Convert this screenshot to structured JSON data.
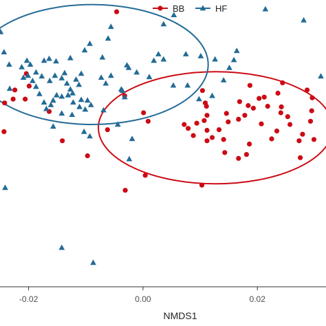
{
  "chart_data": {
    "type": "scatter",
    "title": "",
    "xlabel": "NMDS1",
    "ylabel": "",
    "xlim": [
      -0.025,
      0.032
    ],
    "ylim": [
      -0.0255,
      0.0185
    ],
    "xticks": [
      -0.02,
      0.0,
      0.02
    ],
    "xtick_labels": [
      "-0.02",
      "0.00",
      "0.02"
    ],
    "grid": false,
    "legend_position": "top",
    "series": [
      {
        "name": "BB",
        "color": "#cc0a14",
        "marker": "circle",
        "points": [
          [
            -0.0046,
            0.0167
          ],
          [
            -0.0204,
            0.0072
          ],
          [
            -0.0199,
            0.0053
          ],
          [
            -0.0224,
            0.0047
          ],
          [
            -0.0227,
            0.0033
          ],
          [
            -0.0206,
            0.0033
          ],
          [
            -0.0242,
            0.0027
          ],
          [
            -0.0164,
            0.0014
          ],
          [
            -0.0243,
            -0.0017
          ],
          [
            -0.0062,
            -0.0014
          ],
          [
            -0.0141,
            -0.0031
          ],
          [
            -0.0032,
            0.0038
          ],
          [
            0.0001,
            0.0012
          ],
          [
            0.0009,
            -0.0001
          ],
          [
            0.0072,
            -0.0006
          ],
          [
            0.0109,
            0.0027
          ],
          [
            0.0111,
            0.0022
          ],
          [
            0.0112,
            0.0008
          ],
          [
            0.0107,
            0.0
          ],
          [
            0.0094,
            -0.0004
          ],
          [
            0.0079,
            -0.0012
          ],
          [
            0.0088,
            -0.0023
          ],
          [
            0.0112,
            -0.0015
          ],
          [
            0.0133,
            -0.0014
          ],
          [
            0.0141,
            -0.0029
          ],
          [
            0.0121,
            -0.0026
          ],
          [
            0.0112,
            -0.0031
          ],
          [
            0.0143,
            -0.0049
          ],
          [
            0.0167,
            -0.0058
          ],
          [
            0.0181,
            -0.0052
          ],
          [
            0.0186,
            -0.0036
          ],
          [
            0.0149,
            -0.0002
          ],
          [
            0.0146,
            0.0011
          ],
          [
            0.0169,
            0.0029
          ],
          [
            0.0212,
            0.0036
          ],
          [
            0.0203,
            0.0034
          ],
          [
            0.0244,
            0.0058
          ],
          [
            0.0236,
            0.0042
          ],
          [
            0.0242,
            0.0021
          ],
          [
            0.0241,
            0.0012
          ],
          [
            0.0218,
            0.0022
          ],
          [
            0.0193,
            0.0019
          ],
          [
            0.0178,
            0.0008
          ],
          [
            0.0167,
            0.0002
          ],
          [
            0.0207,
            -0.0005
          ],
          [
            0.0253,
            0.0006
          ],
          [
            0.0257,
            -0.0006
          ],
          [
            0.0234,
            -0.0016
          ],
          [
            0.0225,
            -0.0028
          ],
          [
            0.0187,
            0.0054
          ],
          [
            0.0004,
            -0.0084
          ],
          [
            -0.0031,
            -0.0107
          ],
          [
            0.0103,
            -0.0099
          ],
          [
            0.0296,
            0.0035
          ],
          [
            0.0295,
            0.0015
          ],
          [
            0.0287,
            0.0047
          ],
          [
            0.0293,
            -0.0001
          ],
          [
            0.0279,
            -0.0021
          ],
          [
            0.0273,
            -0.0031
          ],
          [
            0.0299,
            -0.0029
          ],
          [
            0.0275,
            -0.0057
          ],
          [
            0.0104,
            0.0046
          ],
          [
            0.0184,
            0.0023
          ],
          [
            -0.0097,
            -0.0054
          ]
        ]
      },
      {
        "name": "HF",
        "color": "#246b96",
        "marker": "triangle",
        "points": [
          [
            -0.0249,
            0.0136
          ],
          [
            -0.0234,
            0.0086
          ],
          [
            -0.0212,
            0.0082
          ],
          [
            -0.0197,
            0.0086
          ],
          [
            -0.0173,
            0.0092
          ],
          [
            -0.0164,
            0.0095
          ],
          [
            -0.0152,
            0.0091
          ],
          [
            -0.0127,
            0.0096
          ],
          [
            -0.0102,
            0.0108
          ],
          [
            -0.0093,
            0.0118
          ],
          [
            -0.0061,
            0.0126
          ],
          [
            -0.0056,
            0.0144
          ],
          [
            -0.0028,
            0.0085
          ],
          [
            -0.0025,
            0.0081
          ],
          [
            -0.0036,
            0.0046
          ],
          [
            -0.0011,
            0.0074
          ],
          [
            0.0019,
            0.0092
          ],
          [
            0.0011,
            0.0067
          ],
          [
            0.0036,
            0.0148
          ],
          [
            0.0036,
            0.0094
          ],
          [
            0.0053,
            0.0054
          ],
          [
            0.0078,
            0.0054
          ],
          [
            0.0101,
            0.0099
          ],
          [
            0.0141,
            0.0062
          ],
          [
            0.0121,
            0.0038
          ],
          [
            0.0098,
            0.0033
          ],
          [
            0.0151,
            0.0081
          ],
          [
            0.0159,
            0.0093
          ],
          [
            -0.0209,
            0.0066
          ],
          [
            -0.0187,
            0.0074
          ],
          [
            -0.0177,
            0.0068
          ],
          [
            -0.0163,
            0.0061
          ],
          [
            -0.0154,
            0.0069
          ],
          [
            -0.0142,
            0.0065
          ],
          [
            -0.0137,
            0.0073
          ],
          [
            -0.0133,
            0.0057
          ],
          [
            -0.0127,
            0.0048
          ],
          [
            -0.0123,
            0.0042
          ],
          [
            -0.0131,
            0.0039
          ],
          [
            -0.0142,
            0.0037
          ],
          [
            -0.0151,
            0.0039
          ],
          [
            -0.0157,
            0.0031
          ],
          [
            -0.0161,
            0.0024
          ],
          [
            -0.0169,
            0.0018
          ],
          [
            -0.0173,
            0.0028
          ],
          [
            -0.0181,
            0.0041
          ],
          [
            -0.0187,
            0.0052
          ],
          [
            -0.0193,
            0.0061
          ],
          [
            -0.0201,
            0.0069
          ],
          [
            -0.0112,
            0.0055
          ],
          [
            -0.0108,
            0.0032
          ],
          [
            -0.0097,
            0.0031
          ],
          [
            -0.0091,
            0.0024
          ],
          [
            -0.0111,
            0.0021
          ],
          [
            -0.0101,
            0.0017
          ],
          [
            -0.0142,
            0.0011
          ],
          [
            -0.0124,
            0.0009
          ],
          [
            -0.0073,
            0.0066
          ],
          [
            -0.0056,
            0.0069
          ],
          [
            -0.0065,
            0.0057
          ],
          [
            -0.0069,
            0.0016
          ],
          [
            -0.0038,
            0.0048
          ],
          [
            -0.0103,
            -0.0017
          ],
          [
            -0.0093,
            -0.0024
          ],
          [
            -0.0044,
            -0.0006
          ],
          [
            -0.0019,
            -0.0028
          ],
          [
            -0.0256,
            -0.0027
          ],
          [
            -0.0024,
            -0.0059
          ],
          [
            -0.0241,
            -0.0103
          ],
          [
            -0.0142,
            -0.0195
          ],
          [
            -0.0087,
            -0.0218
          ],
          [
            -0.0108,
            0.0072
          ],
          [
            -0.0157,
            -0.0009
          ],
          [
            -0.0243,
            0.0105
          ],
          [
            -0.0233,
            0.0049
          ],
          [
            0.0027,
            0.0102
          ],
          [
            0.0054,
            0.0162
          ],
          [
            0.0281,
            0.0154
          ],
          [
            0.0214,
            0.0171
          ],
          [
            0.0126,
            0.0094
          ],
          [
            0.0075,
            0.0102
          ],
          [
            -0.0071,
            0.0097
          ],
          [
            -0.0032,
            0.0036
          ],
          [
            0.0311,
            0.0068
          ],
          [
            -0.0122,
            0.0028
          ],
          [
            -0.0117,
            0.0063
          ],
          [
            -0.0203,
            0.0092
          ],
          [
            0.0164,
            0.0107
          ]
        ]
      }
    ],
    "ellipses": [
      {
        "series": "BB",
        "color": "#cc0a14",
        "center": [
          0.0127,
          -0.0011
        ],
        "radii": [
          0.0205,
          0.0086
        ]
      },
      {
        "series": "HF",
        "color": "#246b96",
        "center": [
          -0.0089,
          0.0086
        ],
        "radii": [
          0.0203,
          0.0092
        ]
      }
    ]
  }
}
